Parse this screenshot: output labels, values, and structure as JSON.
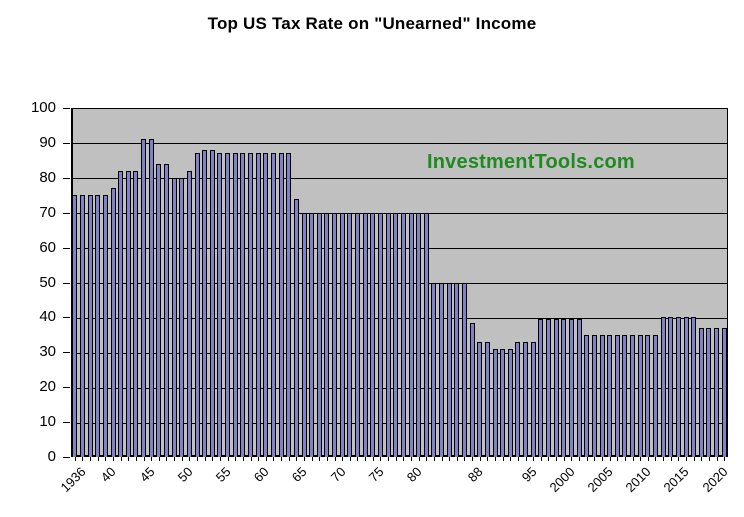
{
  "title": "Top US Tax Rate on \"Unearned\" Income",
  "watermark": "InvestmentTools.com",
  "colors": {
    "background": "#ffffff",
    "plot_background": "#c0c0c0",
    "gridline": "#000000",
    "bar_fill": "#8181c7",
    "bar_border": "#000000",
    "watermark_green": "#1f8a1f",
    "text": "#000000"
  },
  "chart_data": {
    "type": "bar",
    "title": "Top US Tax Rate on \"Unearned\" Income",
    "xlabel": "",
    "ylabel": "",
    "ylim": [
      0,
      100
    ],
    "y_ticks": [
      0,
      10,
      20,
      30,
      40,
      50,
      60,
      70,
      80,
      90,
      100
    ],
    "grid": "horizontal black gridlines every 10, gray plot background",
    "legend": "none",
    "start_year": 1936,
    "end_year": 2021,
    "values": [
      75,
      75,
      75,
      75,
      75,
      77,
      82,
      82,
      82,
      91,
      91,
      84,
      84,
      80,
      80,
      82,
      87,
      88,
      88,
      87,
      87,
      87,
      87,
      87,
      87,
      87,
      87,
      87,
      87,
      74,
      70,
      70,
      70,
      70,
      70,
      70,
      70,
      70,
      70,
      70,
      70,
      70,
      70,
      70,
      70,
      70,
      70,
      50,
      50,
      50,
      50,
      50,
      38.5,
      33,
      33,
      31,
      31,
      31,
      33,
      33,
      33,
      39.6,
      39.6,
      39.6,
      39.6,
      39.6,
      39.6,
      35,
      35,
      35,
      35,
      35,
      35,
      35,
      35,
      35,
      35,
      40,
      40,
      40,
      40,
      40,
      37,
      37,
      37,
      37
    ],
    "segments": [
      {
        "years": "1936-1940",
        "rate": 75
      },
      {
        "years": "1941",
        "rate": 77
      },
      {
        "years": "1942-1944",
        "rate": 82
      },
      {
        "years": "1945-1946",
        "rate": 91
      },
      {
        "years": "1947-1948",
        "rate": 84
      },
      {
        "years": "1949-1950",
        "rate": 80
      },
      {
        "years": "1951",
        "rate": 82
      },
      {
        "years": "1952",
        "rate": 87
      },
      {
        "years": "1953-1954",
        "rate": 88
      },
      {
        "years": "1955-1964",
        "rate": 87
      },
      {
        "years": "1965",
        "rate": 74
      },
      {
        "years": "1966-1982",
        "rate": 70
      },
      {
        "years": "1983-1987",
        "rate": 50
      },
      {
        "years": "1988",
        "rate": 38.5
      },
      {
        "years": "1989-1990",
        "rate": 33
      },
      {
        "years": "1991-1993",
        "rate": 31
      },
      {
        "years": "1994-1996",
        "rate": 33
      },
      {
        "years": "1997-2002",
        "rate": 39.6
      },
      {
        "years": "2003-2012",
        "rate": 35
      },
      {
        "years": "2013-2017",
        "rate": 40
      },
      {
        "years": "2018-2021",
        "rate": 37
      }
    ],
    "x_tick_labels": [
      {
        "label": "1936",
        "year": 1936
      },
      {
        "label": "40",
        "year": 1940
      },
      {
        "label": "45",
        "year": 1945
      },
      {
        "label": "50",
        "year": 1950
      },
      {
        "label": "55",
        "year": 1955
      },
      {
        "label": "60",
        "year": 1960
      },
      {
        "label": "65",
        "year": 1965
      },
      {
        "label": "70",
        "year": 1970
      },
      {
        "label": "75",
        "year": 1975
      },
      {
        "label": "80",
        "year": 1980
      },
      {
        "label": "88",
        "year": 1988
      },
      {
        "label": "95",
        "year": 1995
      },
      {
        "label": "2000",
        "year": 2000
      },
      {
        "label": "2005",
        "year": 2005
      },
      {
        "label": "2010",
        "year": 2010
      },
      {
        "label": "2015",
        "year": 2015
      },
      {
        "label": "2020",
        "year": 2020
      }
    ]
  }
}
